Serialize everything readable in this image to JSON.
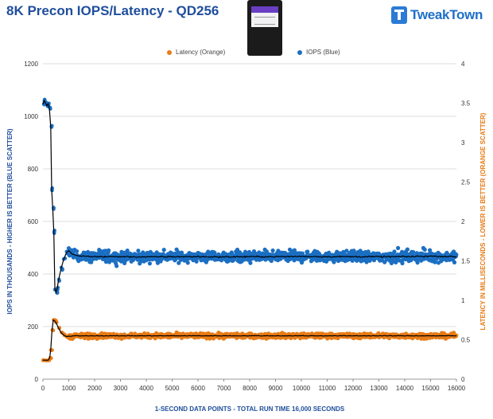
{
  "header": {
    "title": "8K Precon IOPS/Latency - QD256",
    "logo_text": "TweakTown",
    "product_image": "ssd-drive-image"
  },
  "colors": {
    "iops": "#1b6fc2",
    "latency": "#e87b16",
    "average": "#000000",
    "title": "#1f4e9c",
    "grid": "#dcdcdc"
  },
  "chart_data": {
    "type": "scatter",
    "title": "8K Precon IOPS/Latency - QD256",
    "xlabel": "1-SECOND  DATA POINTS - TOTAL RUN TIME 16,000 SECONDS",
    "ylabel_left": "IOPS IN THOUSANDS - HIGHER IS BETTER (BLUE SCATTER)",
    "ylabel_right": "LATENCY IN MILLISECONDS - LOWER IS BETTER (ORANGE SCATTER)",
    "xlim": [
      0,
      16000
    ],
    "ylim_left": [
      0,
      1200
    ],
    "ylim_right": [
      0,
      4
    ],
    "x_ticks": [
      "0",
      "1000",
      "2000",
      "3000",
      "4000",
      "5000",
      "6000",
      "7000",
      "8000",
      "9000",
      "10000",
      "11000",
      "12000",
      "13000",
      "14000",
      "15000",
      "16000"
    ],
    "y_left_ticks": [
      "0",
      "200",
      "400",
      "600",
      "800",
      "1000",
      "1200"
    ],
    "y_right_ticks": [
      "0",
      "0.5",
      "1",
      "1.5",
      "2",
      "2.5",
      "3",
      "3.5",
      "4"
    ],
    "grid": true,
    "legend_position": "top-center",
    "series": [
      {
        "name": "IOPS (Blue)",
        "axis": "left",
        "unit": "K IOPS",
        "points": [
          [
            0,
            1045
          ],
          [
            50,
            1060
          ],
          [
            100,
            1050
          ],
          [
            150,
            1040
          ],
          [
            200,
            1048
          ],
          [
            250,
            1030
          ],
          [
            300,
            960
          ],
          [
            340,
            720
          ],
          [
            380,
            650
          ],
          [
            420,
            560
          ],
          [
            460,
            345
          ],
          [
            500,
            330
          ],
          [
            550,
            345
          ],
          [
            600,
            375
          ],
          [
            700,
            420
          ],
          [
            800,
            455
          ],
          [
            900,
            480
          ],
          [
            1000,
            490
          ],
          [
            1100,
            478
          ],
          [
            1200,
            472
          ],
          [
            1500,
            468
          ],
          [
            2000,
            466
          ],
          [
            3000,
            466
          ],
          [
            4000,
            465
          ],
          [
            5000,
            466
          ],
          [
            6000,
            466
          ],
          [
            7000,
            465
          ],
          [
            8000,
            466
          ],
          [
            9000,
            466
          ],
          [
            10000,
            467
          ],
          [
            11000,
            466
          ],
          [
            12000,
            466
          ],
          [
            13000,
            466
          ],
          [
            14000,
            466
          ],
          [
            15000,
            468
          ],
          [
            16000,
            466
          ]
        ],
        "steady_state": {
          "from": 1000,
          "to": 16000,
          "mean": 466,
          "low": 435,
          "high": 505
        }
      },
      {
        "name": "Latency (Orange)",
        "axis": "right",
        "unit": "ms",
        "points": [
          [
            0,
            0.24
          ],
          [
            100,
            0.24
          ],
          [
            200,
            0.24
          ],
          [
            260,
            0.27
          ],
          [
            300,
            0.37
          ],
          [
            350,
            0.62
          ],
          [
            400,
            0.75
          ],
          [
            450,
            0.74
          ],
          [
            500,
            0.72
          ],
          [
            600,
            0.65
          ],
          [
            700,
            0.59
          ],
          [
            800,
            0.56
          ],
          [
            900,
            0.54
          ],
          [
            1000,
            0.54
          ],
          [
            1200,
            0.55
          ],
          [
            1500,
            0.55
          ],
          [
            2000,
            0.55
          ],
          [
            3000,
            0.55
          ],
          [
            4000,
            0.55
          ],
          [
            5000,
            0.55
          ],
          [
            6000,
            0.55
          ],
          [
            7000,
            0.55
          ],
          [
            8000,
            0.55
          ],
          [
            9000,
            0.55
          ],
          [
            10000,
            0.55
          ],
          [
            11000,
            0.55
          ],
          [
            12000,
            0.55
          ],
          [
            13000,
            0.55
          ],
          [
            14000,
            0.55
          ],
          [
            15000,
            0.55
          ],
          [
            16000,
            0.55
          ]
        ],
        "steady_state": {
          "from": 1000,
          "to": 16000,
          "mean": 0.55,
          "low": 0.5,
          "high": 0.6
        }
      }
    ]
  }
}
